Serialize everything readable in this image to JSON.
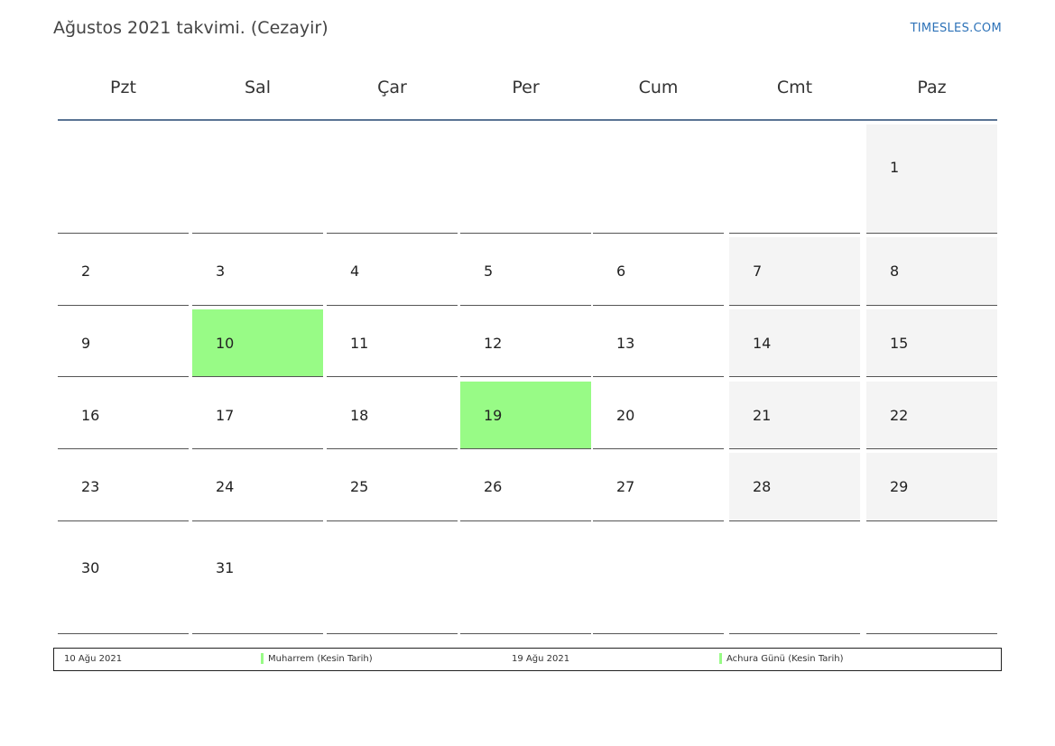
{
  "title": "Ağustos 2021 takvimi. (Cezayir)",
  "brand": "TIMESLES.COM",
  "weekdays": [
    "Pzt",
    "Sal",
    "Çar",
    "Per",
    "Cum",
    "Cmt",
    "Paz"
  ],
  "weeks": [
    [
      "",
      "",
      "",
      "",
      "",
      "",
      "1"
    ],
    [
      "2",
      "3",
      "4",
      "5",
      "6",
      "7",
      "8"
    ],
    [
      "9",
      "10",
      "11",
      "12",
      "13",
      "14",
      "15"
    ],
    [
      "16",
      "17",
      "18",
      "19",
      "20",
      "21",
      "22"
    ],
    [
      "23",
      "24",
      "25",
      "26",
      "27",
      "28",
      "29"
    ],
    [
      "30",
      "31",
      "",
      "",
      "",
      "",
      ""
    ]
  ],
  "holidays": [
    "10",
    "19"
  ],
  "colors": {
    "holiday": "#98fb86",
    "weekend": "#f4f4f4",
    "accent": "#5a7494",
    "brand": "#2d72b8"
  },
  "legend": [
    {
      "date": "10 Ağu 2021",
      "name": "Muharrem (Kesin Tarih)"
    },
    {
      "date": "19 Ağu 2021",
      "name": "Achura Günü (Kesin Tarih)"
    }
  ]
}
